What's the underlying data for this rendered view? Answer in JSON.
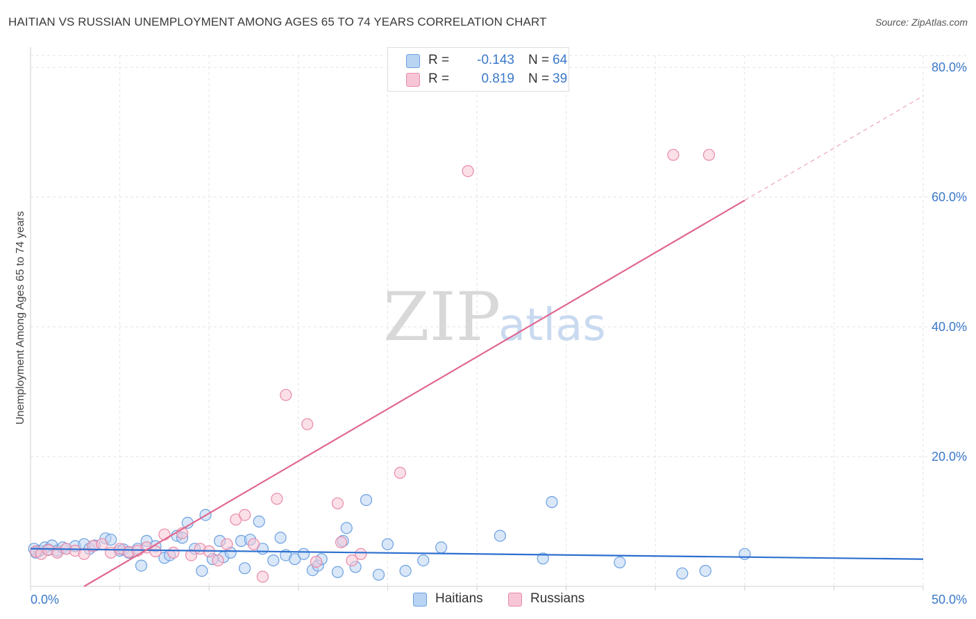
{
  "header": {
    "title": "HAITIAN VS RUSSIAN UNEMPLOYMENT AMONG AGES 65 TO 74 YEARS CORRELATION CHART",
    "source": "Source: ZipAtlas.com"
  },
  "watermark": {
    "zip": "ZIP",
    "atlas": "atlas"
  },
  "legend": {
    "rows": [
      {
        "r_label": "R =",
        "r_value": "-0.143",
        "n_label": "N =",
        "n_value": "64",
        "color": "#b9d3f3",
        "border": "#6b9fe0"
      },
      {
        "r_label": "R =",
        "r_value": "0.819",
        "n_label": "N =",
        "n_value": "39",
        "color": "#f7c6d6",
        "border": "#e88aa8"
      }
    ]
  },
  "bottom_legend": {
    "haitians": "Haitians",
    "russians": "Russians"
  },
  "chart_data": {
    "type": "scatter",
    "title": "HAITIAN VS RUSSIAN UNEMPLOYMENT AMONG AGES 65 TO 74 YEARS CORRELATION CHART",
    "xlabel": "",
    "ylabel": "Unemployment Among Ages 65 to 74 years",
    "xlim": [
      0,
      50
    ],
    "ylim": [
      0,
      80
    ],
    "x_tick_labels": [
      "0.0%",
      "50.0%"
    ],
    "y_ticks": [
      20,
      40,
      60,
      80
    ],
    "y_tick_labels": [
      "20.0%",
      "40.0%",
      "60.0%",
      "80.0%"
    ],
    "grid": true,
    "series": [
      {
        "name": "Haitians",
        "color": "#6b9fe0",
        "fill": "#b9d3f3",
        "trend": {
          "x1": 0,
          "y1": 5.8,
          "x2": 50,
          "y2": 4.2,
          "color": "#2b6fcf"
        },
        "points": [
          [
            0.2,
            5.8
          ],
          [
            0.5,
            5.5
          ],
          [
            0.8,
            6.0
          ],
          [
            1.0,
            5.7
          ],
          [
            1.2,
            6.3
          ],
          [
            1.5,
            5.5
          ],
          [
            1.8,
            6.0
          ],
          [
            2.0,
            5.8
          ],
          [
            2.5,
            6.2
          ],
          [
            3.0,
            6.5
          ],
          [
            3.3,
            5.8
          ],
          [
            3.6,
            6.3
          ],
          [
            4.2,
            7.4
          ],
          [
            4.5,
            7.2
          ],
          [
            5.0,
            5.5
          ],
          [
            5.2,
            5.7
          ],
          [
            5.5,
            5.2
          ],
          [
            6.0,
            5.8
          ],
          [
            6.2,
            3.2
          ],
          [
            6.5,
            7.0
          ],
          [
            7.0,
            6.2
          ],
          [
            7.5,
            4.4
          ],
          [
            7.8,
            4.8
          ],
          [
            8.2,
            7.8
          ],
          [
            8.5,
            7.5
          ],
          [
            8.8,
            9.8
          ],
          [
            9.2,
            5.8
          ],
          [
            9.6,
            2.4
          ],
          [
            9.8,
            11.0
          ],
          [
            10.2,
            4.2
          ],
          [
            10.6,
            7.0
          ],
          [
            10.8,
            4.5
          ],
          [
            11.2,
            5.2
          ],
          [
            11.8,
            7.0
          ],
          [
            12.0,
            2.8
          ],
          [
            12.3,
            7.2
          ],
          [
            12.8,
            10.0
          ],
          [
            13.0,
            5.8
          ],
          [
            13.6,
            4.0
          ],
          [
            14.0,
            7.5
          ],
          [
            14.3,
            4.8
          ],
          [
            14.8,
            4.2
          ],
          [
            15.3,
            5.0
          ],
          [
            15.8,
            2.5
          ],
          [
            16.1,
            3.2
          ],
          [
            16.3,
            4.2
          ],
          [
            17.2,
            2.2
          ],
          [
            17.5,
            7.0
          ],
          [
            17.7,
            9.0
          ],
          [
            18.2,
            3.0
          ],
          [
            18.8,
            13.3
          ],
          [
            19.5,
            1.8
          ],
          [
            20.0,
            6.5
          ],
          [
            21.0,
            2.4
          ],
          [
            22.0,
            4.0
          ],
          [
            23.0,
            6.0
          ],
          [
            26.3,
            7.8
          ],
          [
            28.7,
            4.3
          ],
          [
            29.2,
            13.0
          ],
          [
            33.0,
            3.7
          ],
          [
            36.5,
            2.0
          ],
          [
            37.8,
            2.4
          ],
          [
            40.0,
            5.0
          ],
          [
            0.3,
            5.2
          ]
        ]
      },
      {
        "name": "Russians",
        "color": "#e88aa8",
        "fill": "#f7c6d6",
        "trend": {
          "x1": 3.0,
          "y1": 0.0,
          "x2": 40.0,
          "y2": 59.5,
          "dash_x2": 50.0,
          "dash_y2": 75.6,
          "color": "#e0668f"
        },
        "points": [
          [
            0.3,
            5.4
          ],
          [
            0.6,
            5.0
          ],
          [
            1.0,
            5.6
          ],
          [
            1.5,
            5.2
          ],
          [
            2.0,
            5.8
          ],
          [
            2.5,
            5.5
          ],
          [
            3.0,
            5.0
          ],
          [
            3.5,
            6.2
          ],
          [
            4.0,
            6.5
          ],
          [
            4.5,
            5.2
          ],
          [
            5.0,
            5.8
          ],
          [
            5.5,
            5.3
          ],
          [
            6.0,
            5.5
          ],
          [
            6.5,
            6.0
          ],
          [
            7.0,
            5.4
          ],
          [
            7.5,
            8.0
          ],
          [
            8.0,
            5.2
          ],
          [
            8.5,
            8.2
          ],
          [
            9.0,
            4.8
          ],
          [
            9.5,
            5.8
          ],
          [
            10.0,
            5.4
          ],
          [
            10.5,
            4.0
          ],
          [
            11.0,
            6.5
          ],
          [
            11.5,
            10.3
          ],
          [
            12.0,
            11.0
          ],
          [
            12.5,
            6.5
          ],
          [
            13.0,
            1.5
          ],
          [
            13.8,
            13.5
          ],
          [
            14.3,
            29.5
          ],
          [
            15.5,
            25.0
          ],
          [
            16.0,
            3.8
          ],
          [
            17.2,
            12.8
          ],
          [
            17.4,
            6.8
          ],
          [
            18.0,
            4.0
          ],
          [
            20.7,
            17.5
          ],
          [
            24.5,
            64.0
          ],
          [
            36.0,
            66.5
          ],
          [
            38.0,
            66.5
          ],
          [
            18.5,
            5.0
          ]
        ]
      }
    ]
  }
}
